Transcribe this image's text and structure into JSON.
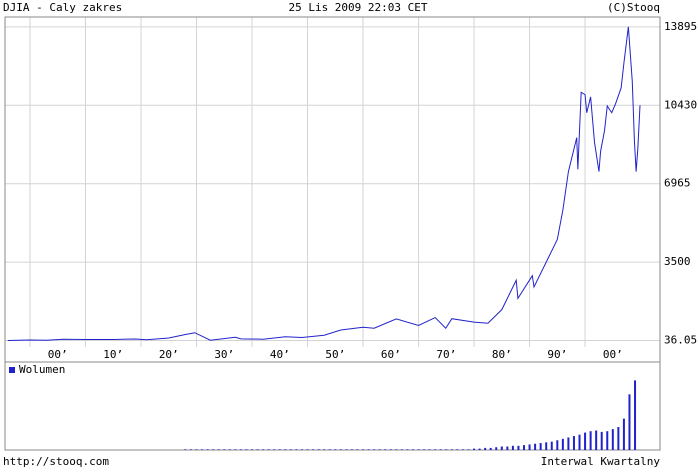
{
  "header": {
    "title": "DJIA - Caly zakres",
    "date": "25 Lis 2009 22:03 CET",
    "copyright": "(C)Stooq"
  },
  "footer": {
    "url": "http://stooq.com",
    "interval": "Interwal Kwartalny"
  },
  "chart_data": [
    {
      "type": "line",
      "xlim": [
        1895.5,
        2013.5
      ],
      "ylim": [
        -250,
        14330
      ],
      "yticks": [
        36.05,
        3500,
        6965,
        10430,
        13895
      ],
      "xticks": [
        {
          "value": 1900,
          "label": "00’"
        },
        {
          "value": 1910,
          "label": "10’"
        },
        {
          "value": 1920,
          "label": "20’"
        },
        {
          "value": 1930,
          "label": "30’"
        },
        {
          "value": 1940,
          "label": "40’"
        },
        {
          "value": 1950,
          "label": "50’"
        },
        {
          "value": 1960,
          "label": "60’"
        },
        {
          "value": 1970,
          "label": "70’"
        },
        {
          "value": 1980,
          "label": "80’"
        },
        {
          "value": 1990,
          "label": "90’"
        },
        {
          "value": 2000,
          "label": "00’"
        }
      ],
      "grid": true,
      "x": [
        1896,
        1900,
        1903,
        1906,
        1910,
        1915,
        1919,
        1921,
        1925,
        1928,
        1929.7,
        1932.5,
        1937,
        1938,
        1942,
        1946,
        1949,
        1953,
        1956,
        1960,
        1962,
        1966,
        1970,
        1973,
        1974.9,
        1976,
        1980,
        1982.5,
        1985,
        1987.6,
        1987.9,
        1990.5,
        1990.8,
        1993,
        1995,
        1996,
        1997,
        1998.5,
        1998.7,
        1999.3,
        2000,
        2000.3,
        2001,
        2001.7,
        2002.5,
        2002.8,
        2003.5,
        2004,
        2004.8,
        2005.5,
        2006.5,
        2007,
        2007.8,
        2008.5,
        2008.9,
        2009.2,
        2009.5,
        2009.9
      ],
      "series": [
        {
          "color": "#2222cc",
          "values": [
            40,
            60,
            50,
            90,
            80,
            80,
            105,
            70,
            150,
            300,
            381,
            50,
            180,
            110,
            95,
            200,
            170,
            270,
            500,
            620,
            580,
            990,
            700,
            1050,
            580,
            1000,
            850,
            800,
            1400,
            2700,
            1900,
            2900,
            2400,
            3500,
            4500,
            5800,
            7500,
            9000,
            7600,
            11000,
            10900,
            10100,
            10800,
            8800,
            7500,
            8400,
            9300,
            10400,
            10100,
            10500,
            11200,
            12300,
            13895,
            11500,
            8800,
            7500,
            8500,
            10430
          ]
        }
      ]
    },
    {
      "type": "bar",
      "xlim": [
        1895.5,
        2013.5
      ],
      "ylim": [
        0,
        125
      ],
      "color": "#2222cc",
      "series": [
        {
          "name": "Wolumen",
          "color": "#2222cc",
          "x": [
            1928,
            1929,
            1930,
            1931,
            1932,
            1933,
            1934,
            1935,
            1936,
            1937,
            1938,
            1939,
            1940,
            1941,
            1942,
            1943,
            1944,
            1945,
            1946,
            1947,
            1948,
            1949,
            1950,
            1951,
            1952,
            1953,
            1954,
            1955,
            1956,
            1957,
            1958,
            1959,
            1960,
            1961,
            1962,
            1963,
            1964,
            1965,
            1966,
            1967,
            1968,
            1969,
            1970,
            1971,
            1972,
            1973,
            1974,
            1975,
            1976,
            1977,
            1978,
            1979,
            1980,
            1981,
            1982,
            1983,
            1984,
            1985,
            1986,
            1987,
            1988,
            1989,
            1990,
            1991,
            1992,
            1993,
            1994,
            1995,
            1996,
            1997,
            1998,
            1999,
            2000,
            2001,
            2002,
            2003,
            2004,
            2005,
            2006,
            2007,
            2008,
            2009
          ],
          "values": [
            1,
            1,
            1,
            1,
            1,
            1,
            1,
            1,
            1,
            1,
            1,
            1,
            1,
            1,
            1,
            1,
            1,
            1,
            1,
            1,
            1,
            1,
            1,
            1,
            1,
            1,
            1,
            1,
            1,
            1,
            1,
            1,
            1,
            1,
            1,
            1,
            1,
            1,
            1,
            1,
            1,
            1,
            1,
            1,
            1,
            1,
            1,
            1,
            1,
            1,
            1,
            1,
            2,
            2,
            3,
            3,
            4,
            5,
            5,
            6,
            6,
            7,
            8,
            9,
            10,
            11,
            12,
            14,
            16,
            18,
            20,
            22,
            25,
            27,
            28,
            26,
            27,
            30,
            33,
            45,
            80,
            100
          ]
        }
      ]
    }
  ]
}
